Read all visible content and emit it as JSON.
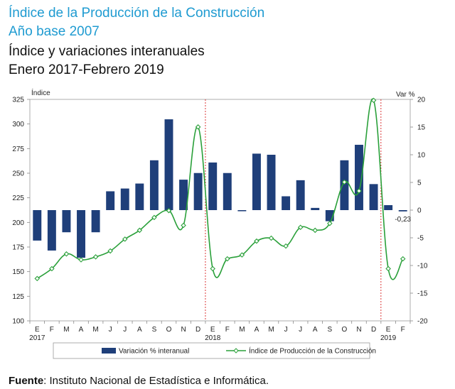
{
  "header": {
    "title1": "Índice de la Producción de la Construcción",
    "title2": "Año base 2007",
    "title3": "Índice y variaciones interanuales",
    "title4": "Enero 2017-Febrero 2019"
  },
  "source": {
    "label": "Fuente",
    "text": ": Instituto Nacional de Estadística e Informática."
  },
  "colors": {
    "title": "#1f9bd1",
    "bar": "#1f3f7a",
    "line": "#2aa03a",
    "separator": "#d62020"
  },
  "chart_data": {
    "type": "bar+line",
    "left_axis_label": "Índice",
    "right_axis_label": "Var %",
    "left_ylim": [
      100,
      325
    ],
    "left_ticks": [
      100,
      125,
      150,
      175,
      200,
      225,
      250,
      275,
      300,
      325
    ],
    "right_ylim": [
      -20,
      20
    ],
    "right_ticks": [
      -20,
      -15,
      -10,
      -5,
      0,
      5,
      10,
      15,
      20
    ],
    "categories": [
      "E",
      "F",
      "M",
      "A",
      "M",
      "J",
      "J",
      "A",
      "S",
      "O",
      "N",
      "D",
      "E",
      "F",
      "M",
      "A",
      "M",
      "J",
      "J",
      "A",
      "S",
      "O",
      "N",
      "D",
      "E",
      "F"
    ],
    "year_labels": [
      {
        "index": 0,
        "label": "2017"
      },
      {
        "index": 12,
        "label": "2018"
      },
      {
        "index": 24,
        "label": "2019"
      }
    ],
    "year_separators_after_index": [
      11,
      23
    ],
    "series": [
      {
        "name": "Variación % interanual",
        "kind": "bar",
        "axis": "right",
        "values": [
          -5.5,
          -7.3,
          -4.0,
          -8.6,
          -4.0,
          3.4,
          3.9,
          4.8,
          9.0,
          16.4,
          5.5,
          6.7,
          8.6,
          6.7,
          -0.2,
          10.2,
          10.0,
          2.5,
          5.4,
          0.4,
          -2.0,
          9.0,
          11.8,
          4.7,
          0.9,
          -0.23
        ]
      },
      {
        "name": "Índice de Producción de la Construcción",
        "kind": "line",
        "axis": "left",
        "values": [
          143,
          153,
          168,
          162,
          165,
          171,
          183,
          192,
          205,
          212,
          197,
          297,
          153,
          163,
          167,
          181,
          184,
          176,
          195,
          192,
          199,
          241,
          232,
          324,
          153,
          163
        ]
      }
    ],
    "annotations": [
      {
        "series": "Variación % interanual",
        "index": 25,
        "text": "-0,23"
      }
    ]
  }
}
